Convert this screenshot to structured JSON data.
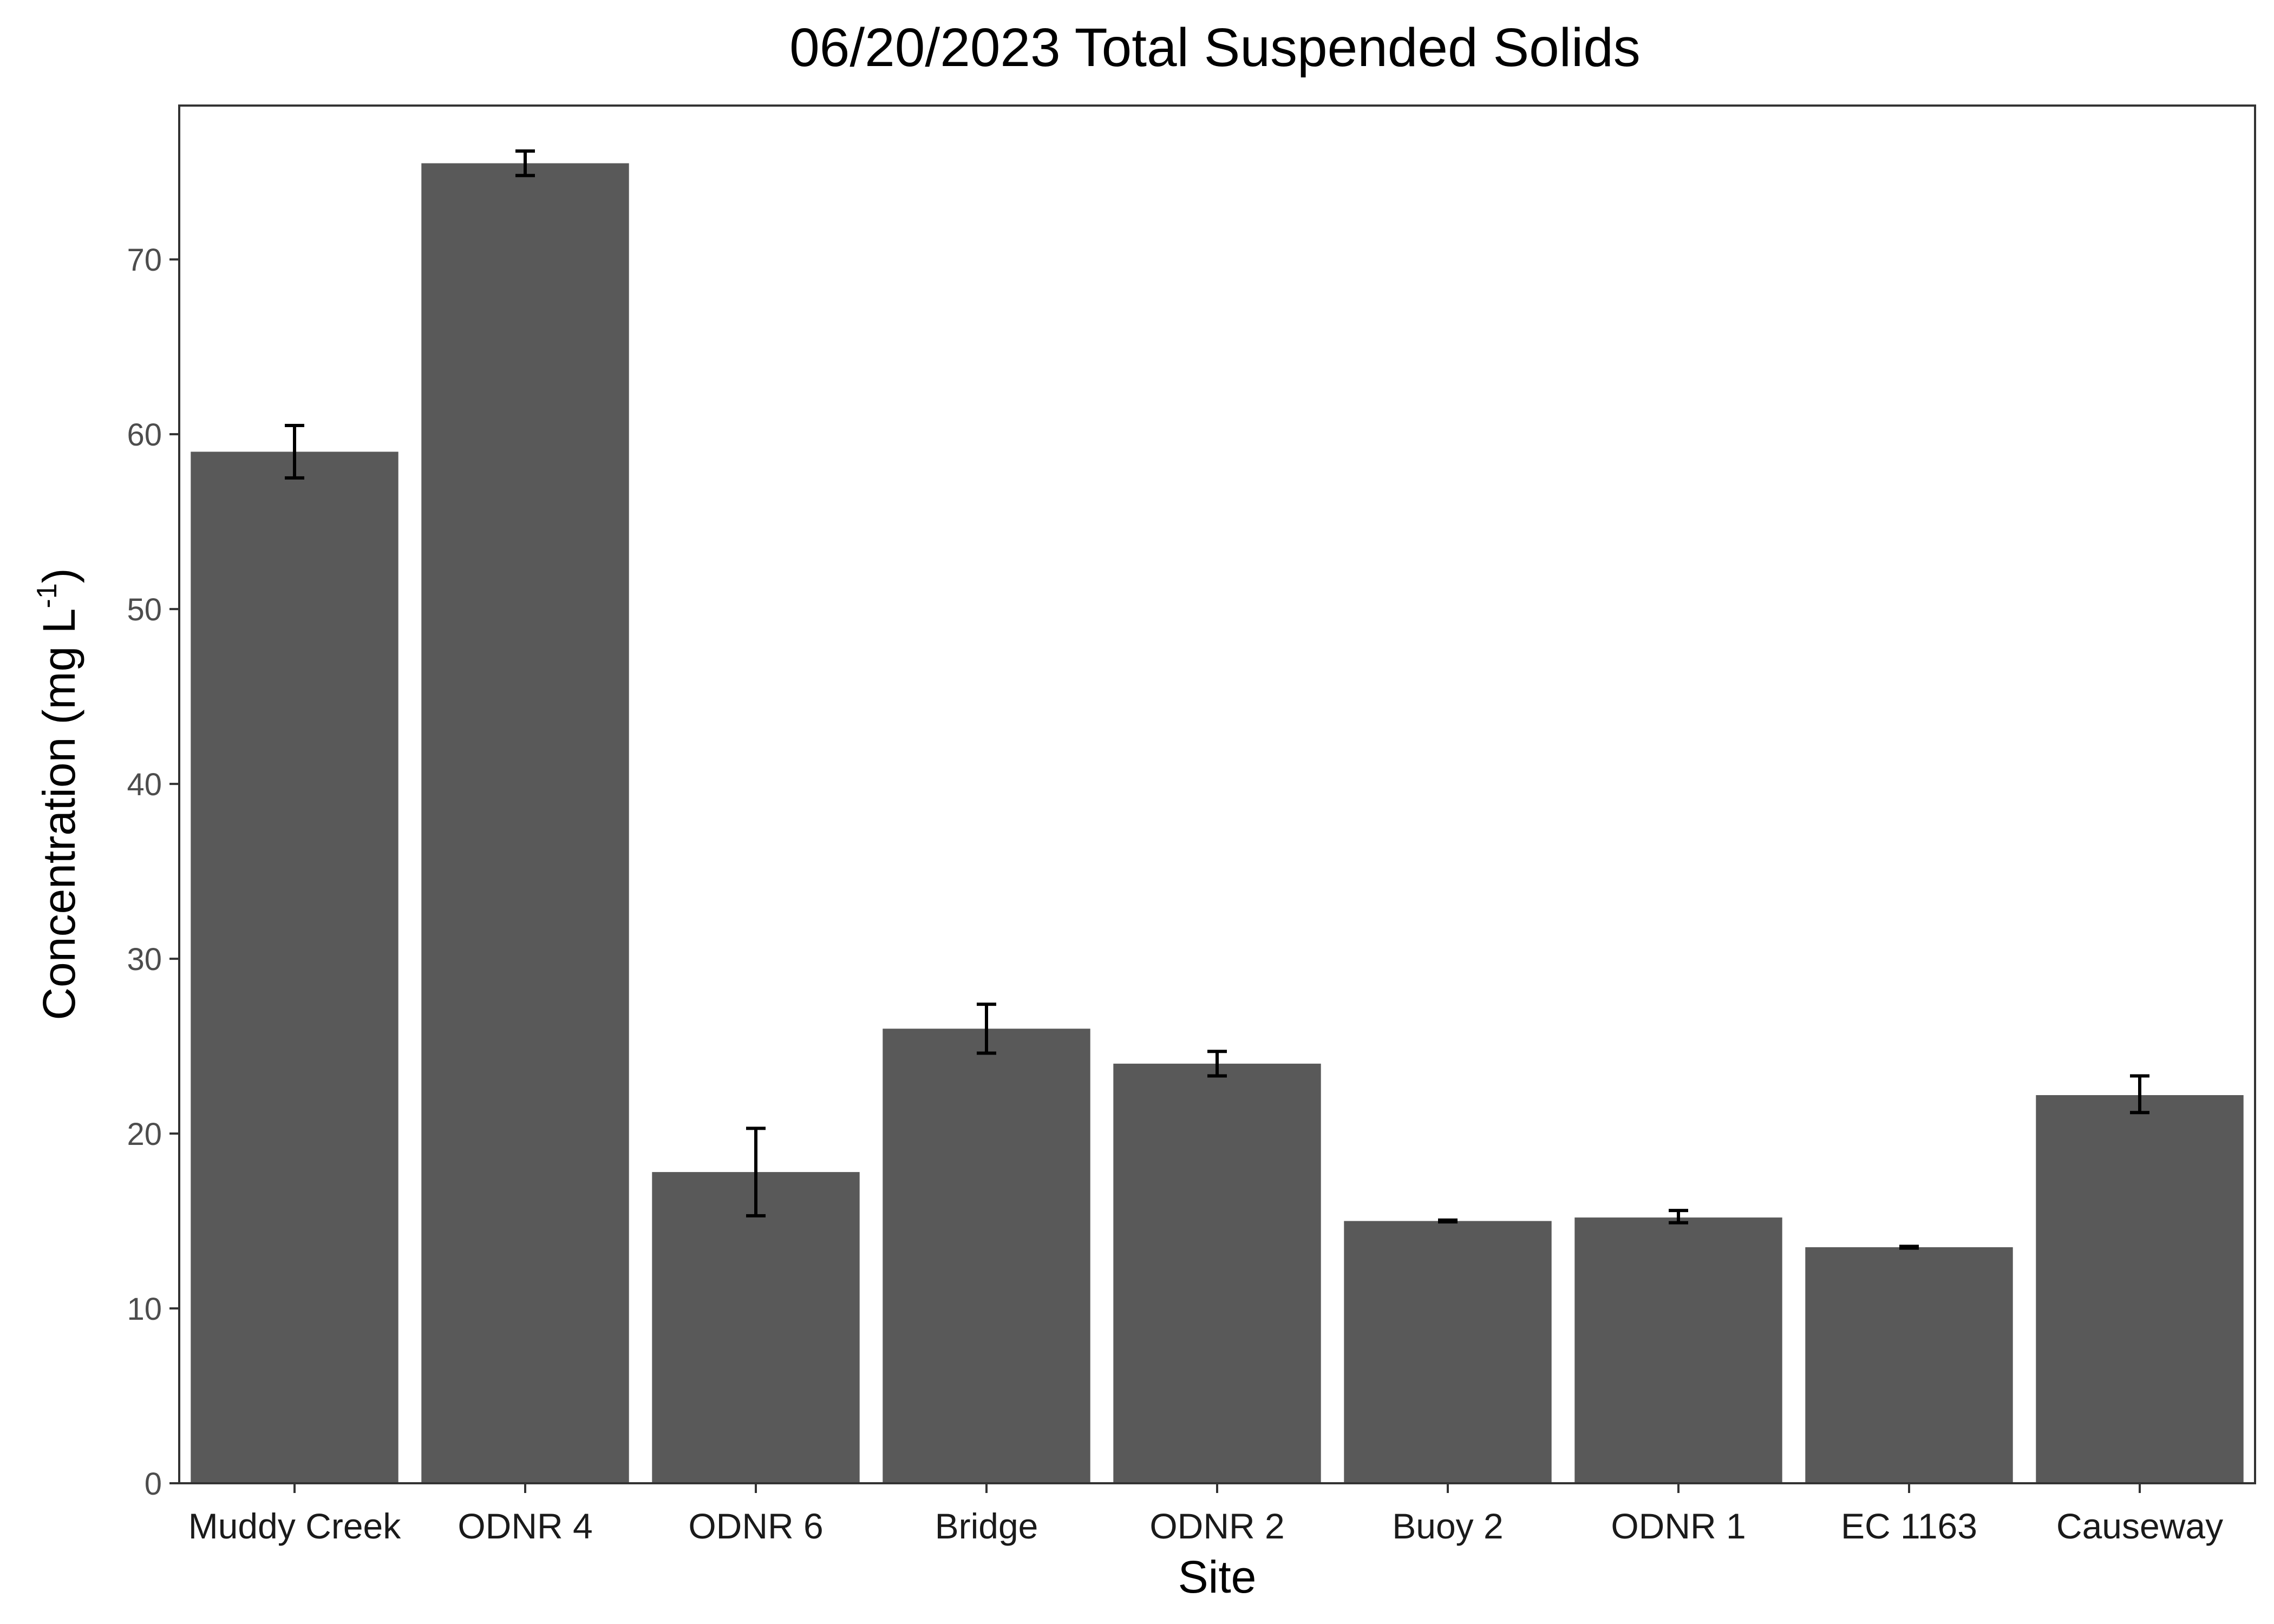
{
  "chart_data": {
    "type": "bar",
    "title": "06/20/2023 Total Suspended Solids",
    "xlabel": "Site",
    "ylabel_main": "Concentration (mg L",
    "ylabel_sup": "-1",
    "ylabel_close": ")",
    "categories": [
      "Muddy Creek",
      "ODNR 4",
      "ODNR 6",
      "Bridge",
      "ODNR 2",
      "Buoy 2",
      "ODNR 1",
      "EC 1163",
      "Causeway"
    ],
    "values": [
      59.0,
      75.5,
      17.8,
      26.0,
      24.0,
      15.0,
      15.2,
      13.5,
      22.2
    ],
    "error_low": [
      57.5,
      74.8,
      15.3,
      24.6,
      23.3,
      14.95,
      14.9,
      13.45,
      21.2
    ],
    "error_high": [
      60.5,
      76.2,
      20.3,
      27.4,
      24.7,
      15.05,
      15.6,
      13.55,
      23.3
    ],
    "ylim": [
      0,
      78.8
    ],
    "yticks": [
      0,
      10,
      20,
      30,
      40,
      50,
      60,
      70
    ],
    "grid": false,
    "legend": "none",
    "colors": {
      "bar": "#595959",
      "errorbar": "#000000",
      "panel_border": "#333333",
      "tick_text": "#4d4d4d"
    }
  }
}
